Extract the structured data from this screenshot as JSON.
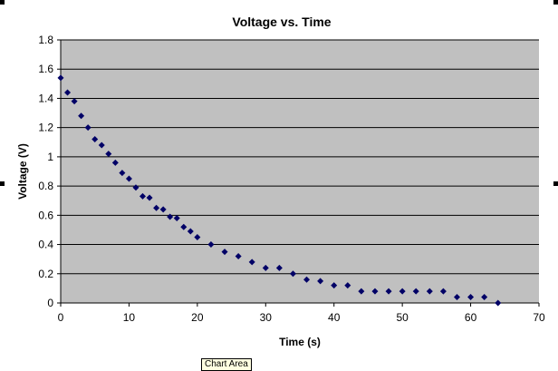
{
  "chart_data": {
    "type": "scatter",
    "title": "Voltage vs. Time",
    "xlabel": "Time (s)",
    "ylabel": "Voltage (V)",
    "xlim": [
      0,
      70
    ],
    "ylim": [
      0,
      1.8
    ],
    "xticks": [
      0,
      10,
      20,
      30,
      40,
      50,
      60,
      70
    ],
    "yticks": [
      0,
      0.2,
      0.4,
      0.6,
      0.8,
      1,
      1.2,
      1.4,
      1.6,
      1.8
    ],
    "grid": "horizontal major",
    "legend": "none",
    "plot_bg": "#c0c0c0",
    "marker_color": "#000066",
    "series": [
      {
        "name": "Voltage",
        "x": [
          0,
          1,
          2,
          3,
          4,
          5,
          6,
          7,
          8,
          9,
          10,
          11,
          12,
          13,
          14,
          15,
          16,
          17,
          18,
          19,
          20,
          22,
          24,
          26,
          28,
          30,
          32,
          34,
          36,
          38,
          40,
          42,
          44,
          46,
          48,
          50,
          52,
          54,
          56,
          58,
          60,
          62,
          64
        ],
        "y": [
          1.54,
          1.44,
          1.38,
          1.28,
          1.2,
          1.12,
          1.08,
          1.02,
          0.96,
          0.89,
          0.85,
          0.79,
          0.73,
          0.72,
          0.65,
          0.64,
          0.59,
          0.58,
          0.52,
          0.49,
          0.45,
          0.4,
          0.35,
          0.32,
          0.28,
          0.24,
          0.24,
          0.2,
          0.16,
          0.15,
          0.12,
          0.12,
          0.08,
          0.08,
          0.08,
          0.08,
          0.08,
          0.08,
          0.08,
          0.04,
          0.04,
          0.04,
          0.0
        ]
      }
    ]
  },
  "tooltip": "Chart Area"
}
